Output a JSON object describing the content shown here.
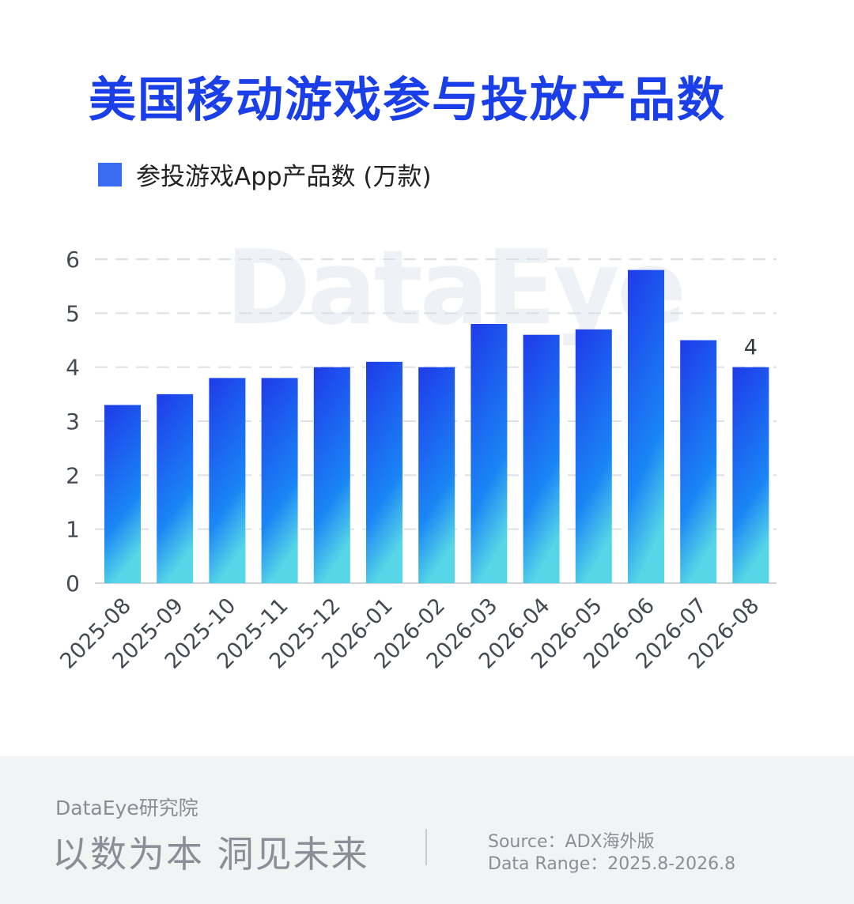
{
  "title": "美国移动游戏参与投放产品数",
  "watermark": "DataEye",
  "legend": {
    "label": "参投游戏App产品数 (万款)"
  },
  "colors": {
    "title": "#1a3ee8",
    "bar_top": "#1f3bea",
    "bar_mid": "#1a86f5",
    "bar_bottom": "#56d6e6",
    "legend": "#3a6cf3"
  },
  "chart_data": {
    "type": "bar",
    "categories": [
      "2025-08",
      "2025-09",
      "2025-10",
      "2025-11",
      "2025-12",
      "2026-01",
      "2026-02",
      "2026-03",
      "2026-04",
      "2026-05",
      "2026-06",
      "2026-07",
      "2026-08"
    ],
    "series": [
      {
        "name": "参投游戏App产品数 (万款)",
        "values": [
          3.3,
          3.5,
          3.8,
          3.8,
          4.0,
          4.1,
          4.0,
          4.8,
          4.6,
          4.7,
          5.8,
          4.5,
          4.0
        ]
      }
    ],
    "ylim": [
      0,
      6
    ],
    "yticks": [
      0,
      1,
      2,
      3,
      4,
      5,
      6
    ],
    "annotations": [
      {
        "index": 12,
        "text": "4"
      }
    ],
    "grid": true,
    "legend": "top-left"
  },
  "footer": {
    "brand": "DataEye研究院",
    "slogan": "以数为本 洞见未来",
    "source": "Source：ADX海外版",
    "range": "Data Range：2025.8-2026.8"
  }
}
